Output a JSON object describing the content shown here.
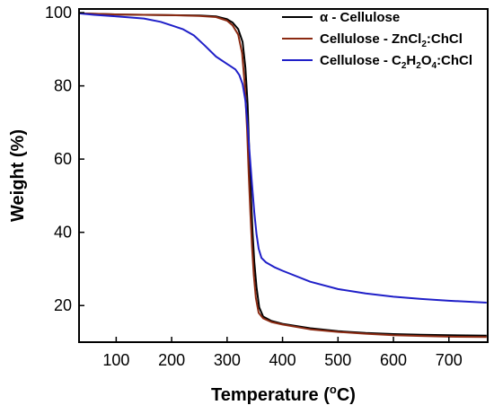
{
  "chart_data": {
    "type": "line",
    "xlabel": "Temperature (",
    "xlabel_sup": "o",
    "xlabel_unit": "C)",
    "ylabel": "Weight (%)",
    "xlim": [
      33,
      770
    ],
    "ylim": [
      10,
      101
    ],
    "xticks": [
      100,
      200,
      300,
      400,
      500,
      600,
      700
    ],
    "yticks": [
      20,
      40,
      60,
      80,
      100
    ],
    "legend_position": "top-right",
    "series": [
      {
        "name": "α - Cellulose",
        "name_parts": [
          [
            "α - Cellulose",
            ""
          ]
        ],
        "color": "#000000",
        "points": [
          [
            33,
            99.8
          ],
          [
            100,
            99.5
          ],
          [
            200,
            99.3
          ],
          [
            250,
            99.2
          ],
          [
            280,
            99.0
          ],
          [
            300,
            98.2
          ],
          [
            310,
            97.3
          ],
          [
            320,
            95.5
          ],
          [
            328,
            92.0
          ],
          [
            333,
            85.0
          ],
          [
            337,
            75.0
          ],
          [
            340,
            62.0
          ],
          [
            343,
            50.0
          ],
          [
            346,
            40.0
          ],
          [
            349,
            32.0
          ],
          [
            353,
            25.0
          ],
          [
            358,
            19.5
          ],
          [
            365,
            17.0
          ],
          [
            380,
            15.8
          ],
          [
            400,
            15.0
          ],
          [
            450,
            13.8
          ],
          [
            500,
            13.0
          ],
          [
            550,
            12.5
          ],
          [
            600,
            12.2
          ],
          [
            650,
            12.0
          ],
          [
            700,
            11.9
          ],
          [
            768,
            11.8
          ]
        ]
      },
      {
        "name": "Cellulose - ZnCl2:ChCl",
        "name_parts": [
          [
            "Cellulose - ZnCl",
            ""
          ],
          [
            "2",
            "sub"
          ],
          [
            ":ChCl",
            ""
          ]
        ],
        "color": "#8b2a12",
        "points": [
          [
            33,
            99.8
          ],
          [
            100,
            99.5
          ],
          [
            200,
            99.3
          ],
          [
            250,
            99.1
          ],
          [
            280,
            98.8
          ],
          [
            300,
            97.8
          ],
          [
            310,
            96.5
          ],
          [
            320,
            94.0
          ],
          [
            327,
            89.0
          ],
          [
            332,
            80.0
          ],
          [
            336,
            68.0
          ],
          [
            339,
            56.0
          ],
          [
            342,
            45.0
          ],
          [
            345,
            36.0
          ],
          [
            348,
            28.5
          ],
          [
            352,
            22.0
          ],
          [
            357,
            18.0
          ],
          [
            365,
            16.5
          ],
          [
            380,
            15.5
          ],
          [
            400,
            14.8
          ],
          [
            450,
            13.5
          ],
          [
            500,
            12.8
          ],
          [
            550,
            12.3
          ],
          [
            600,
            11.9
          ],
          [
            650,
            11.7
          ],
          [
            700,
            11.5
          ],
          [
            768,
            11.4
          ]
        ]
      },
      {
        "name": "Cellulose - C2H2O4:ChCl",
        "name_parts": [
          [
            "Cellulose - C",
            ""
          ],
          [
            "2",
            "sub"
          ],
          [
            "H",
            ""
          ],
          [
            "2",
            "sub"
          ],
          [
            "O",
            ""
          ],
          [
            "4",
            "sub"
          ],
          [
            ":ChCl",
            ""
          ]
        ],
        "color": "#1f1fc8",
        "points": [
          [
            33,
            99.8
          ],
          [
            60,
            99.4
          ],
          [
            100,
            99.0
          ],
          [
            150,
            98.4
          ],
          [
            180,
            97.5
          ],
          [
            200,
            96.5
          ],
          [
            220,
            95.5
          ],
          [
            240,
            93.8
          ],
          [
            260,
            91.0
          ],
          [
            280,
            88.0
          ],
          [
            300,
            86.0
          ],
          [
            315,
            84.5
          ],
          [
            322,
            83.0
          ],
          [
            328,
            80.5
          ],
          [
            333,
            76.0
          ],
          [
            337,
            69.0
          ],
          [
            341,
            61.0
          ],
          [
            345,
            53.0
          ],
          [
            349,
            45.5
          ],
          [
            353,
            39.5
          ],
          [
            357,
            35.5
          ],
          [
            362,
            33.0
          ],
          [
            370,
            31.8
          ],
          [
            385,
            30.5
          ],
          [
            400,
            29.5
          ],
          [
            450,
            26.5
          ],
          [
            500,
            24.5
          ],
          [
            550,
            23.3
          ],
          [
            600,
            22.4
          ],
          [
            650,
            21.8
          ],
          [
            700,
            21.3
          ],
          [
            768,
            20.8
          ]
        ]
      }
    ]
  }
}
